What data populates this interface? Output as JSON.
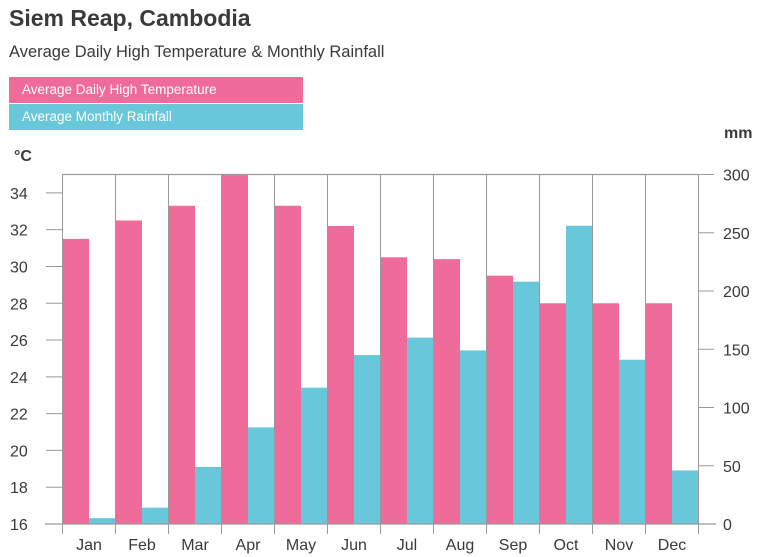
{
  "chart_data": {
    "type": "bar",
    "title": "Siem Reap, Cambodia",
    "subtitle": "Average Daily High Temperature & Monthly Rainfall",
    "categories": [
      "Jan",
      "Feb",
      "Mar",
      "Apr",
      "May",
      "Jun",
      "Jul",
      "Aug",
      "Sep",
      "Oct",
      "Nov",
      "Dec"
    ],
    "series": [
      {
        "name": "Average Daily High Temperature",
        "axis": "left",
        "color": "#EF6C9A",
        "values": [
          31.5,
          32.5,
          33.3,
          35.0,
          33.3,
          32.2,
          30.5,
          30.4,
          29.5,
          28.0,
          28.0,
          28.0
        ]
      },
      {
        "name": "Average Monthly Rainfall",
        "axis": "right",
        "color": "#68C8DA",
        "values": [
          5,
          14,
          49,
          83,
          117,
          145,
          160,
          149,
          208,
          256,
          141,
          46
        ]
      }
    ],
    "left_axis": {
      "unit": "°C",
      "range": [
        16,
        35
      ],
      "ticks": [
        16,
        18,
        20,
        22,
        24,
        26,
        28,
        30,
        32,
        34
      ]
    },
    "right_axis": {
      "unit": "mm",
      "range": [
        0,
        300
      ],
      "ticks": [
        0,
        50,
        100,
        150,
        200,
        250,
        300
      ]
    },
    "legend": "top-left",
    "grid": "vertical separators between months"
  }
}
